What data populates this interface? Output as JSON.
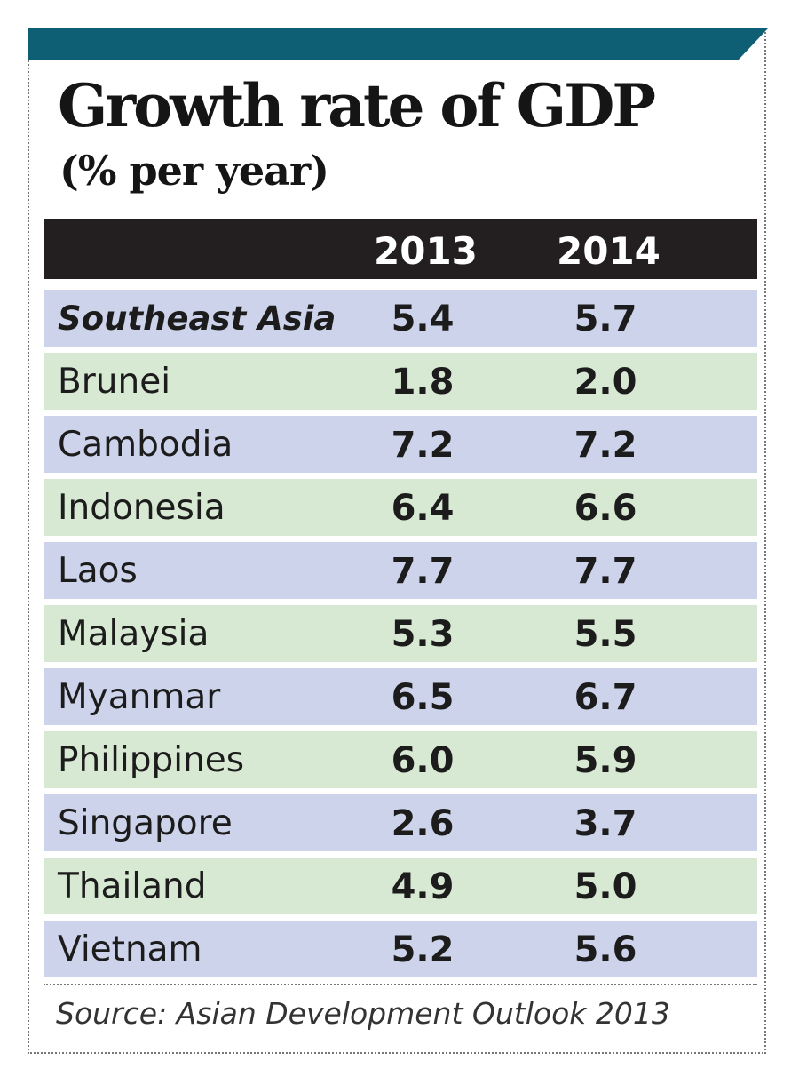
{
  "title": "Growth rate of GDP",
  "subtitle": "(% per year)",
  "source": "Source: Asian Development Outlook 2013",
  "colors": {
    "top_bar": "#0f5f74",
    "header_bg": "#231f20",
    "header_text": "#ffffff",
    "row_blue": "#cdd3ea",
    "row_green": "#d7e9d3",
    "text": "#1c1c1c"
  },
  "chart_data": {
    "type": "table",
    "title": "Growth rate of GDP",
    "subtitle": "(% per year)",
    "columns": [
      "",
      "2013",
      "2014"
    ],
    "rows": [
      {
        "name": "Southeast Asia",
        "v2013": "5.4",
        "v2014": "5.7",
        "emphasis": true
      },
      {
        "name": "Brunei",
        "v2013": "1.8",
        "v2014": "2.0"
      },
      {
        "name": "Cambodia",
        "v2013": "7.2",
        "v2014": "7.2"
      },
      {
        "name": "Indonesia",
        "v2013": "6.4",
        "v2014": "6.6"
      },
      {
        "name": "Laos",
        "v2013": "7.7",
        "v2014": "7.7"
      },
      {
        "name": "Malaysia",
        "v2013": "5.3",
        "v2014": "5.5"
      },
      {
        "name": "Myanmar",
        "v2013": "6.5",
        "v2014": "6.7"
      },
      {
        "name": "Philippines",
        "v2013": "6.0",
        "v2014": "5.9"
      },
      {
        "name": "Singapore",
        "v2013": "2.6",
        "v2014": "3.7"
      },
      {
        "name": "Thailand",
        "v2013": "4.9",
        "v2014": "5.0"
      },
      {
        "name": "Vietnam",
        "v2013": "5.2",
        "v2014": "5.6"
      }
    ],
    "source": "Source: Asian Development Outlook 2013"
  }
}
